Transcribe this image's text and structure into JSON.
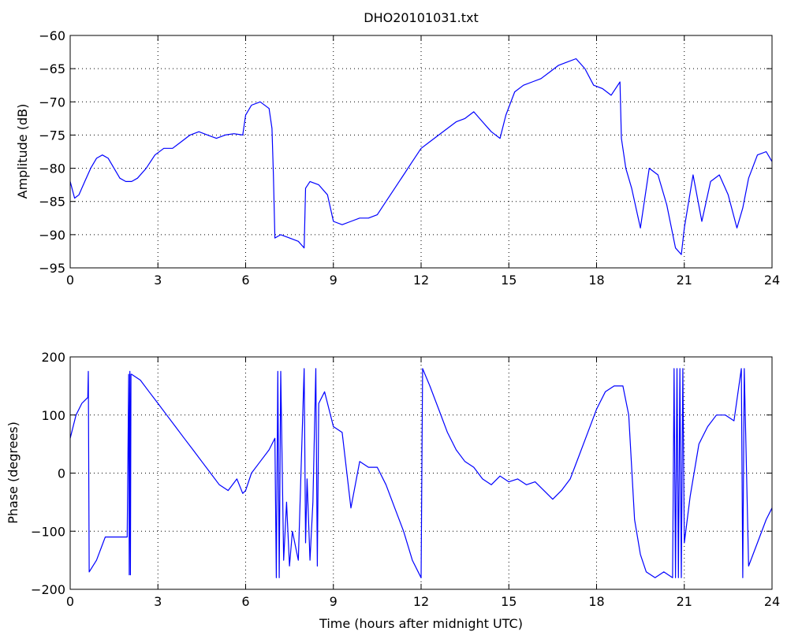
{
  "chart_data": [
    {
      "type": "line",
      "title": "DHO20101031.txt",
      "xlabel": "",
      "ylabel": "Amplitude (dB)",
      "xlim": [
        0,
        24
      ],
      "ylim": [
        -95,
        -60
      ],
      "xticks": [
        0,
        3,
        6,
        9,
        12,
        15,
        18,
        21,
        24
      ],
      "xtick_labels": [
        "0",
        "3",
        "6",
        "9",
        "12",
        "15",
        "18",
        "21",
        "24"
      ],
      "yticks": [
        -95,
        -90,
        -85,
        -80,
        -75,
        -70,
        -65,
        -60
      ],
      "ytick_labels": [
        "−95",
        "−90",
        "−85",
        "−80",
        "−75",
        "−70",
        "−65",
        "−60"
      ],
      "grid": true,
      "line_color": "#0000ff",
      "series": [
        {
          "x": [
            0,
            0.15,
            0.3,
            0.5,
            0.7,
            0.9,
            1.1,
            1.3,
            1.5,
            1.7,
            1.9,
            2.1,
            2.3,
            2.6,
            2.9,
            3.2,
            3.5,
            3.8,
            4.1,
            4.4,
            4.7,
            5.0,
            5.3,
            5.6,
            5.9,
            6.0,
            6.2,
            6.5,
            6.8,
            6.9,
            6.95,
            7.0,
            7.2,
            7.5,
            7.8,
            8.0,
            8.05,
            8.2,
            8.5,
            8.8,
            9.0,
            9.3,
            9.6,
            9.9,
            10.2,
            10.5,
            10.8,
            11.1,
            11.4,
            11.7,
            12.0,
            12.3,
            12.6,
            12.9,
            13.2,
            13.5,
            13.8,
            14.1,
            14.4,
            14.7,
            14.9,
            15.2,
            15.5,
            15.8,
            16.1,
            16.4,
            16.7,
            17.0,
            17.3,
            17.6,
            17.9,
            18.2,
            18.5,
            18.8,
            18.85,
            19.0,
            19.2,
            19.5,
            19.8,
            20.1,
            20.4,
            20.7,
            20.9,
            21.0,
            21.3,
            21.6,
            21.9,
            22.2,
            22.5,
            22.8,
            23.0,
            23.2,
            23.5,
            23.8,
            24.0
          ],
          "y": [
            -82,
            -84.5,
            -84,
            -82,
            -80,
            -78.5,
            -78,
            -78.5,
            -80,
            -81.5,
            -82,
            -82,
            -81.5,
            -80,
            -78,
            -77,
            -77,
            -76,
            -75,
            -74.5,
            -75,
            -75.5,
            -75,
            -74.8,
            -75,
            -72,
            -70.5,
            -70,
            -71,
            -74,
            -81,
            -90.5,
            -90,
            -90.5,
            -91,
            -92,
            -83,
            -82,
            -82.5,
            -84,
            -88,
            -88.5,
            -88,
            -87.5,
            -87.5,
            -87,
            -85,
            -83,
            -81,
            -79,
            -77,
            -76,
            -75,
            -74,
            -73,
            -72.5,
            -71.5,
            -73,
            -74.5,
            -75.5,
            -72,
            -68.5,
            -67.5,
            -67,
            -66.5,
            -65.5,
            -64.5,
            -64,
            -63.5,
            -65,
            -67.5,
            -68,
            -69,
            -67,
            -75.5,
            -80,
            -83,
            -89,
            -80,
            -81,
            -85.5,
            -92,
            -93,
            -89,
            -81,
            -88,
            -82,
            -81,
            -84,
            -89,
            -86,
            -81.5,
            -78,
            -77.5,
            -79
          ]
        }
      ]
    },
    {
      "type": "line",
      "title": "",
      "xlabel": "Time (hours after midnight UTC)",
      "ylabel": "Phase (degrees)",
      "xlim": [
        0,
        24
      ],
      "ylim": [
        -200,
        200
      ],
      "xticks": [
        0,
        3,
        6,
        9,
        12,
        15,
        18,
        21,
        24
      ],
      "xtick_labels": [
        "0",
        "3",
        "6",
        "9",
        "12",
        "15",
        "18",
        "21",
        "24"
      ],
      "yticks": [
        -200,
        -100,
        0,
        100,
        200
      ],
      "ytick_labels": [
        "−200",
        "−100",
        "0",
        "100",
        "200"
      ],
      "grid": true,
      "line_color": "#0000ff",
      "series": [
        {
          "x": [
            0,
            0.2,
            0.4,
            0.6,
            0.62,
            0.65,
            0.9,
            1.2,
            1.5,
            1.8,
            1.95,
            2.0,
            2.02,
            2.04,
            2.06,
            2.08,
            2.1,
            2.4,
            2.7,
            3.0,
            3.3,
            3.6,
            3.9,
            4.2,
            4.5,
            4.8,
            5.1,
            5.4,
            5.7,
            5.9,
            6.0,
            6.2,
            6.5,
            6.8,
            7.0,
            7.05,
            7.1,
            7.15,
            7.2,
            7.3,
            7.4,
            7.5,
            7.6,
            7.8,
            8.0,
            8.05,
            8.1,
            8.2,
            8.3,
            8.4,
            8.45,
            8.5,
            8.7,
            9.0,
            9.3,
            9.6,
            9.9,
            10.2,
            10.5,
            10.8,
            11.1,
            11.4,
            11.7,
            12.0,
            12.05,
            12.3,
            12.6,
            12.9,
            13.2,
            13.5,
            13.8,
            14.1,
            14.4,
            14.7,
            15.0,
            15.3,
            15.6,
            15.9,
            16.2,
            16.5,
            16.8,
            17.1,
            17.4,
            17.7,
            18.0,
            18.3,
            18.6,
            18.9,
            19.1,
            19.3,
            19.5,
            19.7,
            20.0,
            20.3,
            20.6,
            20.65,
            20.7,
            20.75,
            20.8,
            20.85,
            20.9,
            20.95,
            21.0,
            21.2,
            21.5,
            21.8,
            22.1,
            22.4,
            22.7,
            22.95,
            23.0,
            23.05,
            23.2,
            23.5,
            23.8,
            24.0
          ],
          "y": [
            60,
            100,
            120,
            130,
            175,
            -170,
            -150,
            -110,
            -110,
            -110,
            -110,
            170,
            -175,
            175,
            -175,
            170,
            170,
            160,
            140,
            120,
            100,
            80,
            60,
            40,
            20,
            0,
            -20,
            -30,
            -10,
            -35,
            -30,
            0,
            20,
            40,
            60,
            -180,
            175,
            -180,
            175,
            -150,
            -50,
            -160,
            -100,
            -150,
            180,
            -120,
            -10,
            -150,
            -50,
            180,
            -160,
            120,
            140,
            80,
            70,
            -60,
            20,
            10,
            10,
            -20,
            -60,
            -100,
            -150,
            -180,
            180,
            150,
            110,
            70,
            40,
            20,
            10,
            -10,
            -20,
            -5,
            -15,
            -10,
            -20,
            -15,
            -30,
            -45,
            -30,
            -10,
            30,
            70,
            110,
            140,
            150,
            150,
            100,
            -80,
            -140,
            -170,
            -180,
            -170,
            -180,
            180,
            -180,
            180,
            -180,
            180,
            -180,
            180,
            -120,
            -40,
            50,
            80,
            100,
            100,
            90,
            180,
            -180,
            180,
            -160,
            -120,
            -80,
            -60
          ]
        }
      ]
    }
  ]
}
